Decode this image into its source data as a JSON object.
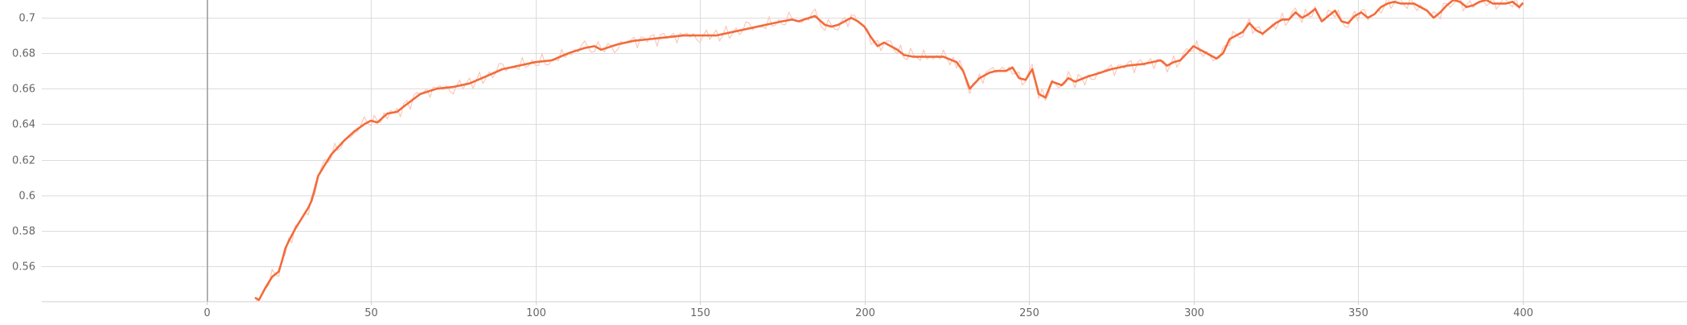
{
  "chart_data": {
    "type": "line",
    "title": "",
    "xlabel": "",
    "ylabel": "",
    "xlim": [
      -50,
      450
    ],
    "ylim": [
      0.54,
      0.71
    ],
    "grid": true,
    "xticks": [
      0,
      50,
      100,
      150,
      200,
      250,
      300,
      350,
      400
    ],
    "xtick_labels": [
      "0",
      "50",
      "100",
      "150",
      "200",
      "250",
      "300",
      "350",
      "400"
    ],
    "yticks": [
      0.56,
      0.58,
      0.6,
      0.62,
      0.64,
      0.66,
      0.68,
      0.7
    ],
    "ytick_labels": [
      "0.56",
      "0.58",
      "0.6",
      "0.62",
      "0.64",
      "0.66",
      "0.68",
      "0.7"
    ],
    "colors": {
      "smoothed": "#f26b3a",
      "raw": "#f9c9bb"
    },
    "series": [
      {
        "role": "smoothed",
        "x": [
          15,
          16,
          18,
          20,
          22,
          23,
          24,
          25,
          27,
          28,
          30,
          31,
          32,
          34,
          36,
          38,
          40,
          42,
          45,
          48,
          50,
          52,
          55,
          58,
          60,
          65,
          70,
          75,
          80,
          85,
          90,
          95,
          100,
          105,
          110,
          115,
          118,
          120,
          125,
          130,
          135,
          140,
          145,
          150,
          155,
          160,
          165,
          170,
          175,
          178,
          180,
          185,
          188,
          190,
          192,
          194,
          196,
          198,
          200,
          202,
          204,
          206,
          208,
          210,
          212,
          215,
          220,
          224,
          228,
          230,
          232,
          235,
          238,
          240,
          243,
          245,
          247,
          249,
          251,
          253,
          255,
          257,
          260,
          262,
          264,
          268,
          270,
          275,
          280,
          285,
          290,
          292,
          294,
          296,
          298,
          300,
          302,
          304,
          307,
          309,
          311,
          313,
          315,
          317,
          319,
          321,
          323,
          325,
          327,
          329,
          331,
          333,
          335,
          337,
          339,
          341,
          343,
          345,
          347,
          349,
          351,
          353,
          355,
          357,
          359,
          361,
          363,
          365,
          367,
          369,
          371,
          373,
          375,
          377,
          379,
          381,
          383,
          385,
          387,
          389,
          391,
          393,
          395,
          397,
          399,
          400
        ],
        "y": [
          0.542,
          0.541,
          0.548,
          0.554,
          0.557,
          0.563,
          0.57,
          0.574,
          0.581,
          0.584,
          0.59,
          0.593,
          0.597,
          0.611,
          0.617,
          0.623,
          0.627,
          0.631,
          0.636,
          0.64,
          0.642,
          0.641,
          0.646,
          0.647,
          0.65,
          0.657,
          0.66,
          0.661,
          0.663,
          0.667,
          0.671,
          0.673,
          0.675,
          0.676,
          0.68,
          0.683,
          0.684,
          0.682,
          0.685,
          0.687,
          0.688,
          0.689,
          0.69,
          0.69,
          0.69,
          0.692,
          0.694,
          0.696,
          0.698,
          0.699,
          0.698,
          0.701,
          0.696,
          0.695,
          0.696,
          0.698,
          0.7,
          0.698,
          0.695,
          0.689,
          0.684,
          0.686,
          0.684,
          0.682,
          0.679,
          0.678,
          0.678,
          0.678,
          0.675,
          0.67,
          0.66,
          0.666,
          0.669,
          0.67,
          0.67,
          0.672,
          0.666,
          0.665,
          0.671,
          0.657,
          0.655,
          0.664,
          0.662,
          0.666,
          0.664,
          0.667,
          0.668,
          0.671,
          0.673,
          0.674,
          0.676,
          0.673,
          0.675,
          0.676,
          0.68,
          0.684,
          0.682,
          0.68,
          0.677,
          0.68,
          0.688,
          0.69,
          0.692,
          0.697,
          0.693,
          0.691,
          0.694,
          0.697,
          0.699,
          0.699,
          0.703,
          0.7,
          0.702,
          0.705,
          0.698,
          0.701,
          0.704,
          0.698,
          0.697,
          0.701,
          0.703,
          0.7,
          0.702,
          0.706,
          0.708,
          0.709,
          0.708,
          0.708,
          0.708,
          0.706,
          0.704,
          0.7,
          0.703,
          0.707,
          0.71,
          0.709,
          0.706,
          0.707,
          0.709,
          0.71,
          0.708,
          0.708,
          0.708,
          0.709,
          0.706,
          0.708
        ]
      }
    ]
  }
}
